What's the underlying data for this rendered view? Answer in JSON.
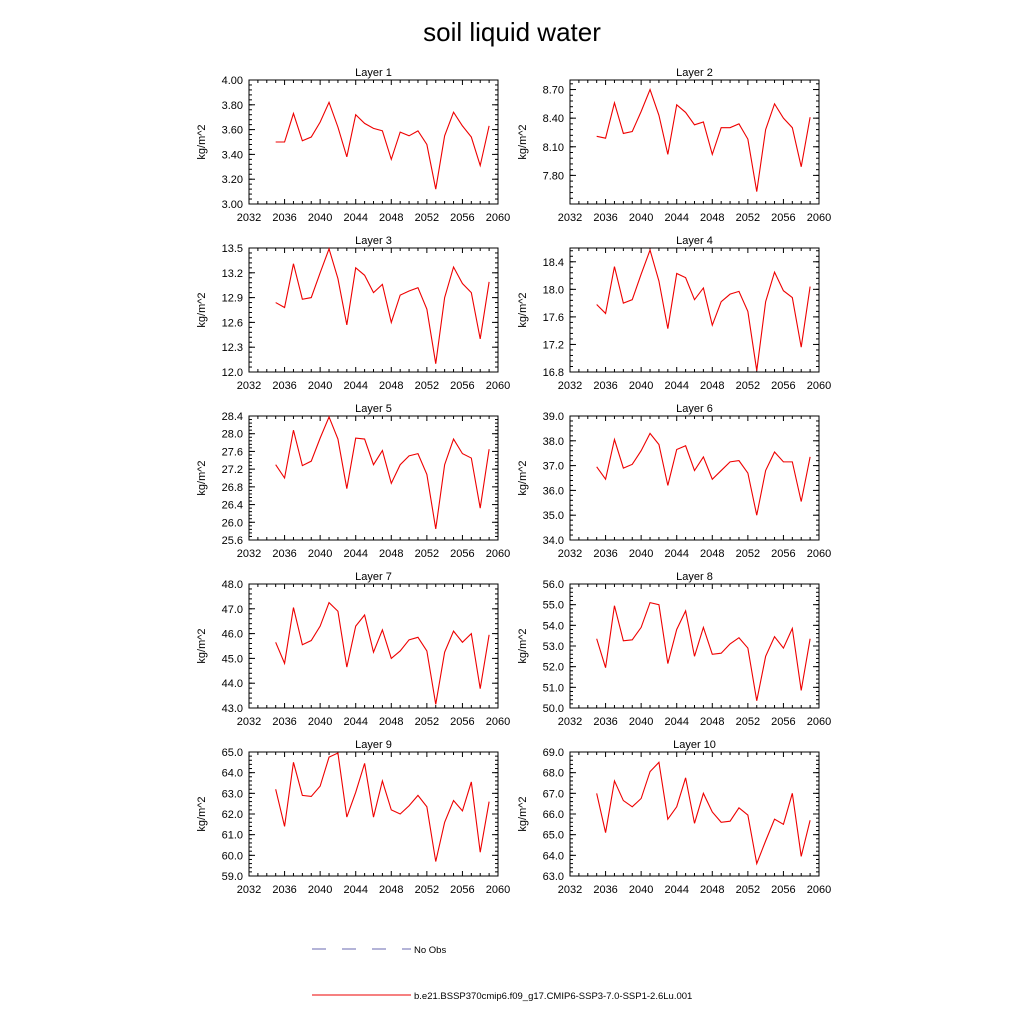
{
  "title": "soil liquid water",
  "legend": {
    "obs_label": "No Obs",
    "obs_color": "#6a6ab0",
    "model_label": "b.e21.BSSP370cmip6.f09_g17.CMIP6-SSP3-7.0-SSP1-2.6Lu.001",
    "model_color": "#ee0000"
  },
  "chart_data": [
    {
      "type": "line",
      "title": "Layer 1",
      "ylabel": "kg/m^2",
      "xlim": [
        2032,
        2060
      ],
      "ylim": [
        3.0,
        4.0
      ],
      "xticks": [
        "2032",
        "2036",
        "2040",
        "2044",
        "2048",
        "2052",
        "2056",
        "2060"
      ],
      "yticks": [
        "3.00",
        "3.20",
        "3.40",
        "3.60",
        "3.80",
        "4.00"
      ],
      "series": [
        {
          "color": "#ee0000",
          "x": [
            2035,
            2036,
            2037,
            2038,
            2039,
            2040,
            2041,
            2042,
            2043,
            2044,
            2045,
            2046,
            2047,
            2048,
            2049,
            2050,
            2051,
            2052,
            2053,
            2054,
            2055,
            2056,
            2057,
            2058,
            2059
          ],
          "y": [
            3.5,
            3.5,
            3.73,
            3.51,
            3.54,
            3.66,
            3.82,
            3.62,
            3.38,
            3.72,
            3.65,
            3.61,
            3.59,
            3.36,
            3.58,
            3.55,
            3.59,
            3.48,
            3.12,
            3.55,
            3.74,
            3.63,
            3.54,
            3.31,
            3.63
          ]
        }
      ]
    },
    {
      "type": "line",
      "title": "Layer 2",
      "ylabel": "kg/m^2",
      "xlim": [
        2032,
        2060
      ],
      "ylim": [
        7.5,
        8.8
      ],
      "xticks": [
        "2032",
        "2036",
        "2040",
        "2044",
        "2048",
        "2052",
        "2056",
        "2060"
      ],
      "yticks": [
        "7.80",
        "8.10",
        "8.40",
        "8.70"
      ],
      "series": [
        {
          "color": "#ee0000",
          "x": [
            2035,
            2036,
            2037,
            2038,
            2039,
            2040,
            2041,
            2042,
            2043,
            2044,
            2045,
            2046,
            2047,
            2048,
            2049,
            2050,
            2051,
            2052,
            2053,
            2054,
            2055,
            2056,
            2057,
            2058,
            2059
          ],
          "y": [
            8.21,
            8.19,
            8.56,
            8.24,
            8.26,
            8.47,
            8.7,
            8.43,
            8.02,
            8.54,
            8.46,
            8.33,
            8.36,
            8.02,
            8.3,
            8.3,
            8.34,
            8.18,
            7.63,
            8.28,
            8.55,
            8.4,
            8.3,
            7.89,
            8.41
          ]
        }
      ]
    },
    {
      "type": "line",
      "title": "Layer 3",
      "ylabel": "kg/m^2",
      "xlim": [
        2032,
        2060
      ],
      "ylim": [
        12.0,
        13.5
      ],
      "xticks": [
        "2032",
        "2036",
        "2040",
        "2044",
        "2048",
        "2052",
        "2056",
        "2060"
      ],
      "yticks": [
        "12.0",
        "12.3",
        "12.6",
        "12.9",
        "13.2",
        "13.5"
      ],
      "series": [
        {
          "color": "#ee0000",
          "x": [
            2035,
            2036,
            2037,
            2038,
            2039,
            2040,
            2041,
            2042,
            2043,
            2044,
            2045,
            2046,
            2047,
            2048,
            2049,
            2050,
            2051,
            2052,
            2053,
            2054,
            2055,
            2056,
            2057,
            2058,
            2059
          ],
          "y": [
            12.84,
            12.78,
            13.31,
            12.88,
            12.9,
            13.2,
            13.49,
            13.13,
            12.57,
            13.26,
            13.17,
            12.96,
            13.06,
            12.6,
            12.93,
            12.98,
            13.02,
            12.76,
            12.1,
            12.9,
            13.27,
            13.07,
            12.96,
            12.4,
            13.09
          ]
        }
      ]
    },
    {
      "type": "line",
      "title": "Layer 4",
      "ylabel": "kg/m^2",
      "xlim": [
        2032,
        2060
      ],
      "ylim": [
        16.8,
        18.6
      ],
      "xticks": [
        "2032",
        "2036",
        "2040",
        "2044",
        "2048",
        "2052",
        "2056",
        "2060"
      ],
      "yticks": [
        "16.8",
        "17.2",
        "17.6",
        "18.0",
        "18.4"
      ],
      "series": [
        {
          "color": "#ee0000",
          "x": [
            2035,
            2036,
            2037,
            2038,
            2039,
            2040,
            2041,
            2042,
            2043,
            2044,
            2045,
            2046,
            2047,
            2048,
            2049,
            2050,
            2051,
            2052,
            2053,
            2054,
            2055,
            2056,
            2057,
            2058,
            2059
          ],
          "y": [
            17.78,
            17.65,
            18.33,
            17.8,
            17.85,
            18.22,
            18.57,
            18.12,
            17.43,
            18.23,
            18.17,
            17.85,
            18.02,
            17.48,
            17.82,
            17.93,
            17.97,
            17.68,
            16.82,
            17.82,
            18.25,
            17.98,
            17.88,
            17.16,
            18.04
          ]
        }
      ]
    },
    {
      "type": "line",
      "title": "Layer 5",
      "ylabel": "kg/m^2",
      "xlim": [
        2032,
        2060
      ],
      "ylim": [
        25.6,
        28.4
      ],
      "xticks": [
        "2032",
        "2036",
        "2040",
        "2044",
        "2048",
        "2052",
        "2056",
        "2060"
      ],
      "yticks": [
        "25.6",
        "26.0",
        "26.4",
        "26.8",
        "27.2",
        "27.6",
        "28.0",
        "28.4"
      ],
      "series": [
        {
          "color": "#ee0000",
          "x": [
            2035,
            2036,
            2037,
            2038,
            2039,
            2040,
            2041,
            2042,
            2043,
            2044,
            2045,
            2046,
            2047,
            2048,
            2049,
            2050,
            2051,
            2052,
            2053,
            2054,
            2055,
            2056,
            2057,
            2058,
            2059
          ],
          "y": [
            27.3,
            27.0,
            28.08,
            27.28,
            27.38,
            27.9,
            28.38,
            27.88,
            26.76,
            27.9,
            27.88,
            27.3,
            27.62,
            26.88,
            27.3,
            27.5,
            27.55,
            27.08,
            25.85,
            27.3,
            27.88,
            27.55,
            27.45,
            26.32,
            27.65
          ]
        }
      ]
    },
    {
      "type": "line",
      "title": "Layer 6",
      "ylabel": "kg/m^2",
      "xlim": [
        2032,
        2060
      ],
      "ylim": [
        34.0,
        39.0
      ],
      "xticks": [
        "2032",
        "2036",
        "2040",
        "2044",
        "2048",
        "2052",
        "2056",
        "2060"
      ],
      "yticks": [
        "34.0",
        "35.0",
        "36.0",
        "37.0",
        "38.0",
        "39.0"
      ],
      "series": [
        {
          "color": "#ee0000",
          "x": [
            2035,
            2036,
            2037,
            2038,
            2039,
            2040,
            2041,
            2042,
            2043,
            2044,
            2045,
            2046,
            2047,
            2048,
            2049,
            2050,
            2051,
            2052,
            2053,
            2054,
            2055,
            2056,
            2057,
            2058,
            2059
          ],
          "y": [
            36.95,
            36.45,
            38.05,
            36.9,
            37.05,
            37.6,
            38.3,
            37.85,
            36.2,
            37.65,
            37.8,
            36.8,
            37.35,
            36.45,
            36.8,
            37.15,
            37.2,
            36.7,
            35.0,
            36.8,
            37.55,
            37.15,
            37.15,
            35.55,
            37.35
          ]
        }
      ]
    },
    {
      "type": "line",
      "title": "Layer 7",
      "ylabel": "kg/m^2",
      "xlim": [
        2032,
        2060
      ],
      "ylim": [
        43.0,
        48.0
      ],
      "xticks": [
        "2032",
        "2036",
        "2040",
        "2044",
        "2048",
        "2052",
        "2056",
        "2060"
      ],
      "yticks": [
        "43.0",
        "44.0",
        "45.0",
        "46.0",
        "47.0",
        "48.0"
      ],
      "series": [
        {
          "color": "#ee0000",
          "x": [
            2035,
            2036,
            2037,
            2038,
            2039,
            2040,
            2041,
            2042,
            2043,
            2044,
            2045,
            2046,
            2047,
            2048,
            2049,
            2050,
            2051,
            2052,
            2053,
            2054,
            2055,
            2056,
            2057,
            2058,
            2059
          ],
          "y": [
            45.65,
            44.8,
            47.05,
            45.55,
            45.72,
            46.3,
            47.25,
            46.9,
            44.65,
            46.3,
            46.75,
            45.25,
            46.15,
            45.0,
            45.3,
            45.75,
            45.85,
            45.3,
            43.15,
            45.25,
            46.1,
            45.65,
            46.0,
            43.78,
            45.95
          ]
        }
      ]
    },
    {
      "type": "line",
      "title": "Layer 8",
      "ylabel": "kg/m^2",
      "xlim": [
        2032,
        2060
      ],
      "ylim": [
        50.0,
        56.0
      ],
      "xticks": [
        "2032",
        "2036",
        "2040",
        "2044",
        "2048",
        "2052",
        "2056",
        "2060"
      ],
      "yticks": [
        "50.0",
        "51.0",
        "52.0",
        "53.0",
        "54.0",
        "55.0",
        "56.0"
      ],
      "series": [
        {
          "color": "#ee0000",
          "x": [
            2035,
            2036,
            2037,
            2038,
            2039,
            2040,
            2041,
            2042,
            2043,
            2044,
            2045,
            2046,
            2047,
            2048,
            2049,
            2050,
            2051,
            2052,
            2053,
            2054,
            2055,
            2056,
            2057,
            2058,
            2059
          ],
          "y": [
            53.35,
            51.95,
            54.95,
            53.25,
            53.3,
            53.9,
            55.1,
            55.0,
            52.15,
            53.8,
            54.7,
            52.5,
            53.9,
            52.6,
            52.65,
            53.1,
            53.4,
            52.9,
            50.35,
            52.5,
            53.45,
            52.9,
            53.85,
            50.85,
            53.35
          ]
        }
      ]
    },
    {
      "type": "line",
      "title": "Layer 9",
      "ylabel": "kg/m^2",
      "xlim": [
        2032,
        2060
      ],
      "ylim": [
        59.0,
        65.0
      ],
      "xticks": [
        "2032",
        "2036",
        "2040",
        "2044",
        "2048",
        "2052",
        "2056",
        "2060"
      ],
      "yticks": [
        "59.0",
        "60.0",
        "61.0",
        "62.0",
        "63.0",
        "64.0",
        "65.0"
      ],
      "series": [
        {
          "color": "#ee0000",
          "x": [
            2035,
            2036,
            2037,
            2038,
            2039,
            2040,
            2041,
            2042,
            2043,
            2044,
            2045,
            2046,
            2047,
            2048,
            2049,
            2050,
            2051,
            2052,
            2053,
            2054,
            2055,
            2056,
            2057,
            2058,
            2059
          ],
          "y": [
            63.2,
            61.4,
            64.5,
            62.9,
            62.85,
            63.35,
            64.75,
            64.95,
            61.85,
            63.05,
            64.45,
            61.85,
            63.6,
            62.2,
            62.0,
            62.4,
            62.9,
            62.35,
            59.7,
            61.6,
            62.65,
            62.15,
            63.55,
            60.15,
            62.6
          ]
        }
      ]
    },
    {
      "type": "line",
      "title": "Layer 10",
      "ylabel": "kg/m^2",
      "xlim": [
        2032,
        2060
      ],
      "ylim": [
        63.0,
        69.0
      ],
      "xticks": [
        "2032",
        "2036",
        "2040",
        "2044",
        "2048",
        "2052",
        "2056",
        "2060"
      ],
      "yticks": [
        "63.0",
        "64.0",
        "65.0",
        "66.0",
        "67.0",
        "68.0",
        "69.0"
      ],
      "series": [
        {
          "color": "#ee0000",
          "x": [
            2035,
            2036,
            2037,
            2038,
            2039,
            2040,
            2041,
            2042,
            2043,
            2044,
            2045,
            2046,
            2047,
            2048,
            2049,
            2050,
            2051,
            2052,
            2053,
            2054,
            2055,
            2056,
            2057,
            2058,
            2059
          ],
          "y": [
            67.0,
            65.1,
            67.6,
            66.65,
            66.35,
            66.75,
            68.05,
            68.5,
            65.75,
            66.35,
            67.75,
            65.55,
            67.0,
            66.1,
            65.6,
            65.65,
            66.3,
            65.95,
            63.6,
            64.7,
            65.75,
            65.5,
            67.0,
            63.95,
            65.7
          ]
        }
      ]
    }
  ]
}
